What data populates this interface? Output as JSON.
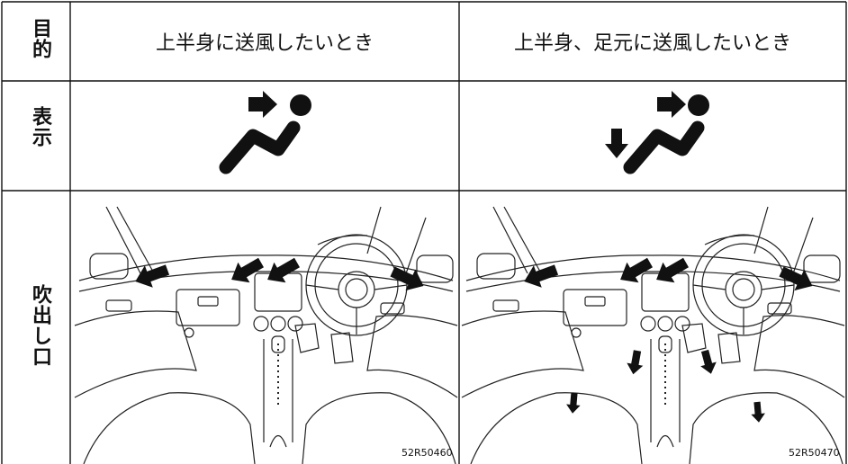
{
  "table": {
    "row_labels": [
      "目的",
      "表示",
      "吹出し口"
    ],
    "headers": [
      "上半身に送風したいとき",
      "上半身、足元に送風したいとき"
    ],
    "figure_codes": [
      "52R50460",
      "52R50470"
    ]
  }
}
